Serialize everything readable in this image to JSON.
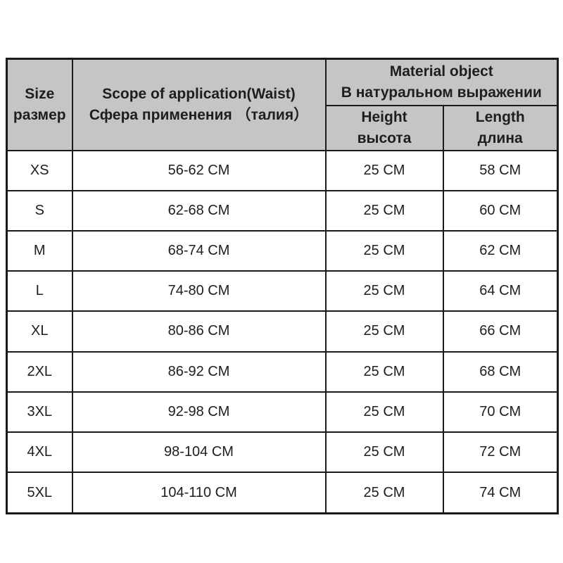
{
  "table": {
    "header": {
      "size": "Size\nразмер",
      "scope": "Scope of application(Waist)\nСфера применения （талия）",
      "material": "Material object\nВ натуральном выражении",
      "height": "Height\nвысота",
      "length": "Length\nдлина"
    },
    "rows": [
      {
        "size": "XS",
        "waist": "56-62 CM",
        "height": "25 CM",
        "length": "58 CM"
      },
      {
        "size": "S",
        "waist": "62-68 CM",
        "height": "25 CM",
        "length": "60 CM"
      },
      {
        "size": "M",
        "waist": "68-74 CM",
        "height": "25 CM",
        "length": "62 CM"
      },
      {
        "size": "L",
        "waist": "74-80 CM",
        "height": "25 CM",
        "length": "64 CM"
      },
      {
        "size": "XL",
        "waist": "80-86 CM",
        "height": "25 CM",
        "length": "66 CM"
      },
      {
        "size": "2XL",
        "waist": "86-92 CM",
        "height": "25 CM",
        "length": "68 CM"
      },
      {
        "size": "3XL",
        "waist": "92-98 CM",
        "height": "25 CM",
        "length": "70 CM"
      },
      {
        "size": "4XL",
        "waist": "98-104 CM",
        "height": "25 CM",
        "length": "72 CM"
      },
      {
        "size": "5XL",
        "waist": "104-110 CM",
        "height": "25 CM",
        "length": "74 CM"
      }
    ],
    "colors": {
      "header_bg": "#c5c5c5",
      "border": "#1a1a1a",
      "text": "#1e1e1e",
      "row_bg": "#ffffff"
    }
  },
  "chart_data": {
    "type": "table",
    "title": "Size chart",
    "columns": [
      "Size размер",
      "Scope of application(Waist) Сфера применения （талия）",
      "Height высота",
      "Length длина"
    ],
    "column_group": "Material object В натуральном выражении (spans Height and Length)",
    "rows": [
      [
        "XS",
        "56-62 CM",
        "25 CM",
        "58 CM"
      ],
      [
        "S",
        "62-68 CM",
        "25 CM",
        "60 CM"
      ],
      [
        "M",
        "68-74 CM",
        "25 CM",
        "62 CM"
      ],
      [
        "L",
        "74-80 CM",
        "25 CM",
        "64 CM"
      ],
      [
        "XL",
        "80-86 CM",
        "25 CM",
        "66 CM"
      ],
      [
        "2XL",
        "86-92 CM",
        "25 CM",
        "68 CM"
      ],
      [
        "3XL",
        "92-98 CM",
        "25 CM",
        "70 CM"
      ],
      [
        "4XL",
        "98-104 CM",
        "25 CM",
        "72 CM"
      ],
      [
        "5XL",
        "104-110 CM",
        "25 CM",
        "74 CM"
      ]
    ]
  }
}
